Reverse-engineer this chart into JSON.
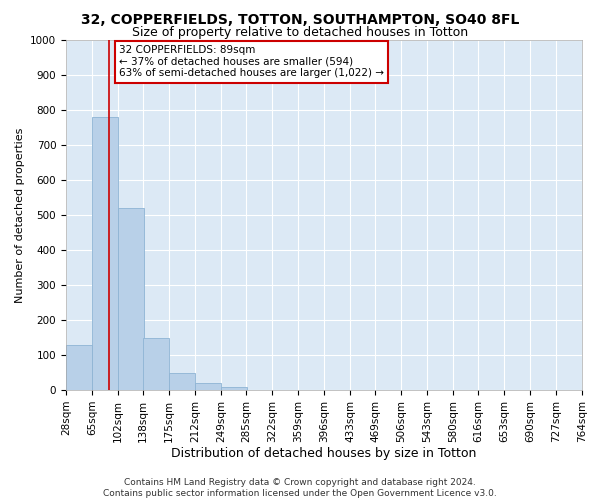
{
  "title1": "32, COPPERFIELDS, TOTTON, SOUTHAMPTON, SO40 8FL",
  "title2": "Size of property relative to detached houses in Totton",
  "xlabel": "Distribution of detached houses by size in Totton",
  "ylabel": "Number of detached properties",
  "bin_edges": [
    28,
    65,
    102,
    138,
    175,
    212,
    249,
    285,
    322,
    359,
    396,
    433,
    469,
    506,
    543,
    580,
    616,
    653,
    690,
    727,
    764
  ],
  "bar_heights": [
    130,
    780,
    520,
    150,
    50,
    20,
    10,
    0,
    0,
    0,
    0,
    0,
    0,
    0,
    0,
    0,
    0,
    0,
    0,
    0
  ],
  "bar_color": "#b8d0e8",
  "bar_edgecolor": "#8eb4d4",
  "property_size": 89,
  "property_line_color": "#cc0000",
  "annotation_text": "32 COPPERFIELDS: 89sqm\n← 37% of detached houses are smaller (594)\n63% of semi-detached houses are larger (1,022) →",
  "annotation_box_facecolor": "#ffffff",
  "annotation_box_edgecolor": "#cc0000",
  "ylim": [
    0,
    1000
  ],
  "yticks": [
    0,
    100,
    200,
    300,
    400,
    500,
    600,
    700,
    800,
    900,
    1000
  ],
  "xlim_left": 28,
  "xlim_right": 764,
  "plot_background_color": "#dce9f5",
  "grid_color": "#c8d8ec",
  "footer_line1": "Contains HM Land Registry data © Crown copyright and database right 2024.",
  "footer_line2": "Contains public sector information licensed under the Open Government Licence v3.0.",
  "title1_fontsize": 10,
  "title2_fontsize": 9,
  "xlabel_fontsize": 9,
  "ylabel_fontsize": 8,
  "tick_fontsize": 7.5,
  "annotation_fontsize": 7.5,
  "footer_fontsize": 6.5
}
